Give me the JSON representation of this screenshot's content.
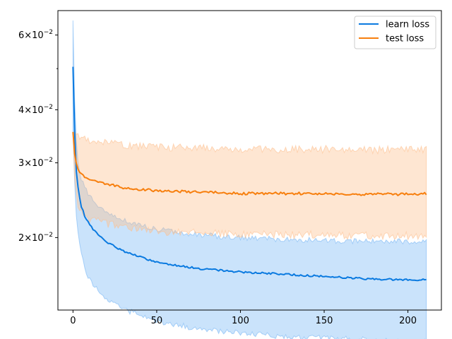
{
  "chart_data": {
    "type": "line",
    "title": "",
    "xlabel": "",
    "ylabel": "",
    "xlim": [
      -9,
      220
    ],
    "ylim": [
      0.0135,
      0.0685
    ],
    "yscale": "log",
    "grid": false,
    "legend_position": "top-right",
    "x_ticks": [
      {
        "value": 0,
        "label": "0"
      },
      {
        "value": 50,
        "label": "50"
      },
      {
        "value": 100,
        "label": "100"
      },
      {
        "value": 150,
        "label": "150"
      },
      {
        "value": 200,
        "label": "200"
      }
    ],
    "y_ticks": [
      {
        "value": 0.02,
        "base": "2",
        "exp": "−2"
      },
      {
        "value": 0.03,
        "base": "3",
        "exp": "−2"
      },
      {
        "value": 0.04,
        "base": "4",
        "exp": "−2"
      },
      {
        "value": 0.06,
        "base": "6",
        "exp": "−2"
      }
    ],
    "y_tick_times": "×10",
    "y_minor_ticks": [
      0.05
    ],
    "x_count": 212,
    "series": [
      {
        "name": "learn loss",
        "color": "#0a7ae0",
        "band_color": "#7ab8f5",
        "anchors_x": [
          0,
          1,
          2,
          3,
          4,
          5,
          7,
          10,
          15,
          20,
          30,
          40,
          50,
          75,
          100,
          125,
          150,
          175,
          200,
          211
        ],
        "mean": [
          0.0505,
          0.0355,
          0.0285,
          0.0262,
          0.0247,
          0.0237,
          0.0225,
          0.0214,
          0.0203,
          0.0195,
          0.0186,
          0.018,
          0.0175,
          0.0169,
          0.0166,
          0.0164,
          0.0162,
          0.016,
          0.0159,
          0.0159
        ],
        "upper": [
          0.065,
          0.042,
          0.0335,
          0.0305,
          0.0288,
          0.0276,
          0.0262,
          0.025,
          0.0238,
          0.023,
          0.022,
          0.0214,
          0.0209,
          0.0203,
          0.02,
          0.0198,
          0.0197,
          0.0196,
          0.0196,
          0.0196
        ],
        "lower": [
          0.0355,
          0.027,
          0.0228,
          0.0208,
          0.0194,
          0.0183,
          0.017,
          0.0159,
          0.015,
          0.0144,
          0.0136,
          0.0131,
          0.0127,
          0.0122,
          0.0119,
          0.0117,
          0.0116,
          0.0115,
          0.0114,
          0.0114
        ],
        "noise": 0.01
      },
      {
        "name": "test loss",
        "color": "#f77f0e",
        "band_color": "#fdc08f",
        "anchors_x": [
          0,
          1,
          2,
          3,
          5,
          10,
          20,
          30,
          50,
          75,
          100,
          125,
          150,
          175,
          200,
          211
        ],
        "mean": [
          0.0355,
          0.0315,
          0.0298,
          0.029,
          0.0282,
          0.0274,
          0.0268,
          0.0262,
          0.0258,
          0.0256,
          0.0254,
          0.0254,
          0.0254,
          0.0253,
          0.0253,
          0.0254
        ],
        "upper": [
          0.0355,
          0.0355,
          0.0352,
          0.035,
          0.0345,
          0.034,
          0.0335,
          0.033,
          0.0327,
          0.0325,
          0.0323,
          0.0323,
          0.0323,
          0.0322,
          0.0322,
          0.0322
        ],
        "lower": [
          0.0355,
          0.0275,
          0.0255,
          0.024,
          0.023,
          0.0222,
          0.0216,
          0.0212,
          0.0207,
          0.0205,
          0.0204,
          0.0203,
          0.0203,
          0.0202,
          0.0202,
          0.0202
        ],
        "noise": 0.014
      }
    ]
  }
}
